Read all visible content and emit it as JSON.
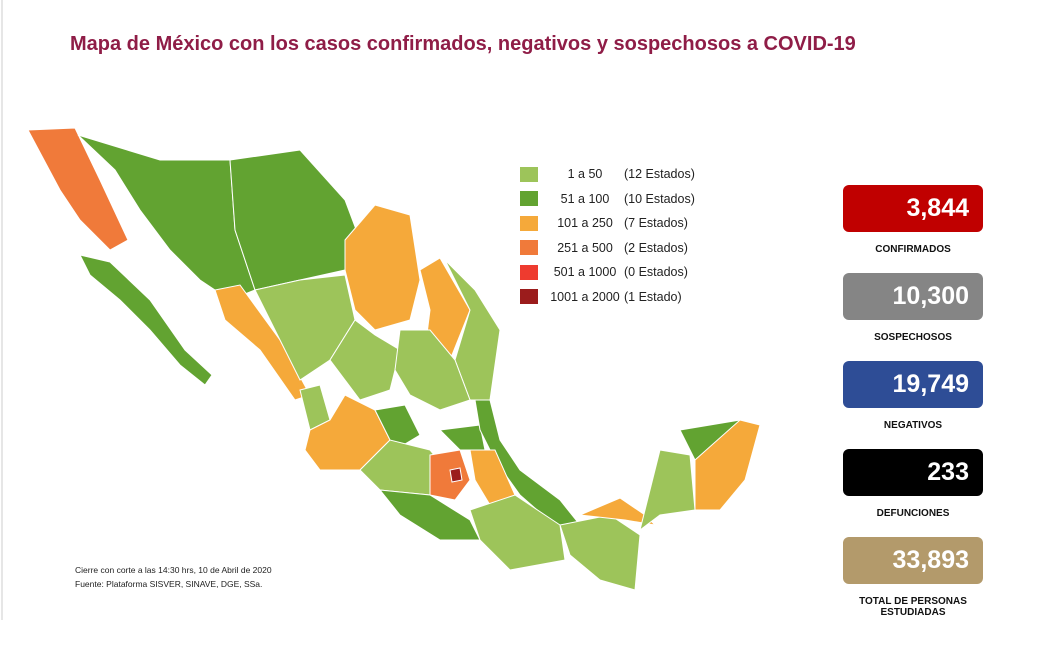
{
  "title": "Mapa de México con los casos confirmados, negativos y sospechosos a COVID-19",
  "legend": [
    {
      "range": "1 a 50",
      "count": "(12 Estados)",
      "color": "#9dc45a"
    },
    {
      "range": "51 a 100",
      "count": "(10 Estados)",
      "color": "#62a331"
    },
    {
      "range": "101 a 250",
      "count": "(7 Estados)",
      "color": "#f5a93a"
    },
    {
      "range": "251 a 500",
      "count": "(2 Estados)",
      "color": "#f07a3a"
    },
    {
      "range": "501 a 1000",
      "count": "(0 Estados)",
      "color": "#ee3b2f"
    },
    {
      "range": "1001 a 2000",
      "count": "(1 Estado)",
      "color": "#9b1c1c"
    }
  ],
  "stats": [
    {
      "value": "3,844",
      "label": "CONFIRMADOS",
      "color": "#c00000"
    },
    {
      "value": "10,300",
      "label": "SOSPECHOSOS",
      "color": "#858585"
    },
    {
      "value": "19,749",
      "label": "NEGATIVOS",
      "color": "#2e4d96"
    },
    {
      "value": "233",
      "label": "DEFUNCIONES",
      "color": "#000000"
    },
    {
      "value": "33,893",
      "label": "TOTAL DE PERSONAS ESTUDIADAS",
      "color": "#b39a6b"
    }
  ],
  "footnote": [
    "Cierre con corte a las 14:30 hrs, 10 de Abril de 2020",
    "Fuente: Plataforma SISVER, SINAVE, DGE, SSa."
  ]
}
